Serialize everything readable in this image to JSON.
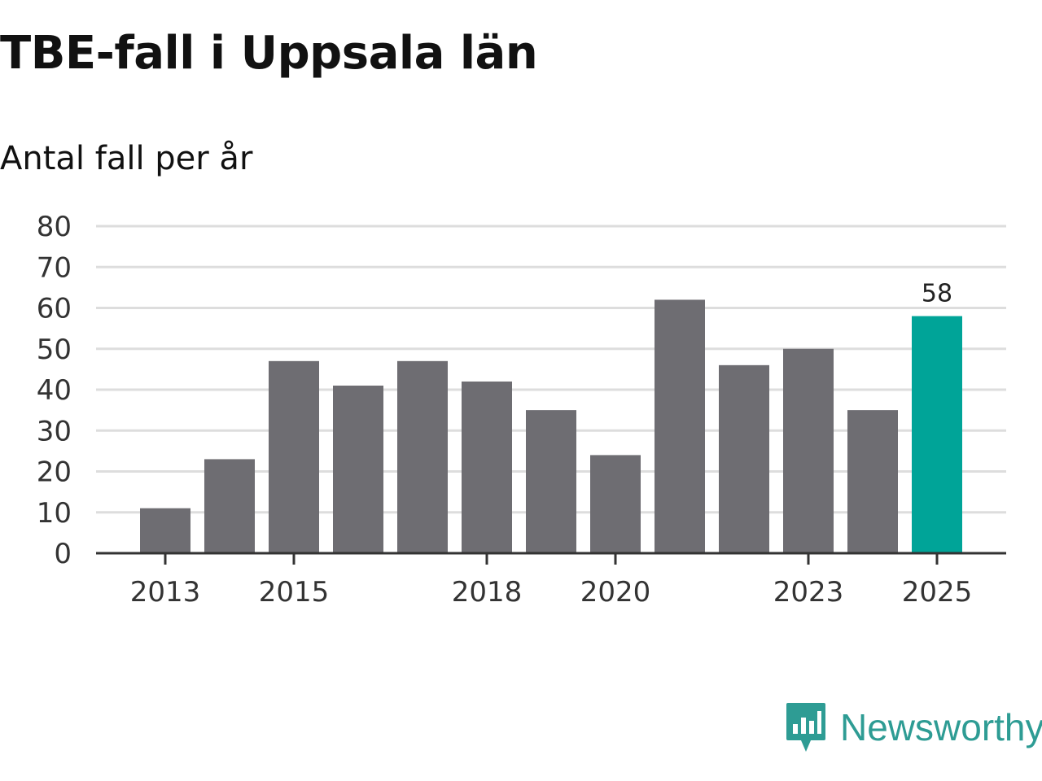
{
  "chart_data": {
    "type": "bar",
    "title": "TBE-fall i Uppsala län",
    "subtitle": "Antal fall per år",
    "xlabel": "",
    "ylabel": "",
    "ylim": [
      0,
      80
    ],
    "y_ticks": [
      0,
      10,
      20,
      30,
      40,
      50,
      60,
      70,
      80
    ],
    "y_tick_labels": [
      "0",
      "10",
      "20",
      "30",
      "40",
      "50",
      "60",
      "70",
      "80"
    ],
    "categories": [
      2013,
      2014,
      2015,
      2016,
      2017,
      2018,
      2019,
      2020,
      2021,
      2022,
      2023,
      2024,
      2025
    ],
    "values": [
      11,
      23,
      47,
      41,
      47,
      42,
      35,
      24,
      62,
      46,
      50,
      35,
      58
    ],
    "x_tick_labels": [
      "2013",
      "2015",
      "2018",
      "2020",
      "2023",
      "2025"
    ],
    "highlight_index": 12,
    "data_labels": [
      {
        "index": 12,
        "text": "58"
      }
    ],
    "grid": true,
    "colors": {
      "bar": "#6e6d72",
      "highlight": "#00a498",
      "grid": "#dddddd",
      "axis": "#333333"
    }
  },
  "branding": {
    "name": "Newsworthy",
    "logo_icon": "newsworthy-logo-icon",
    "color": "#2e9c94"
  }
}
